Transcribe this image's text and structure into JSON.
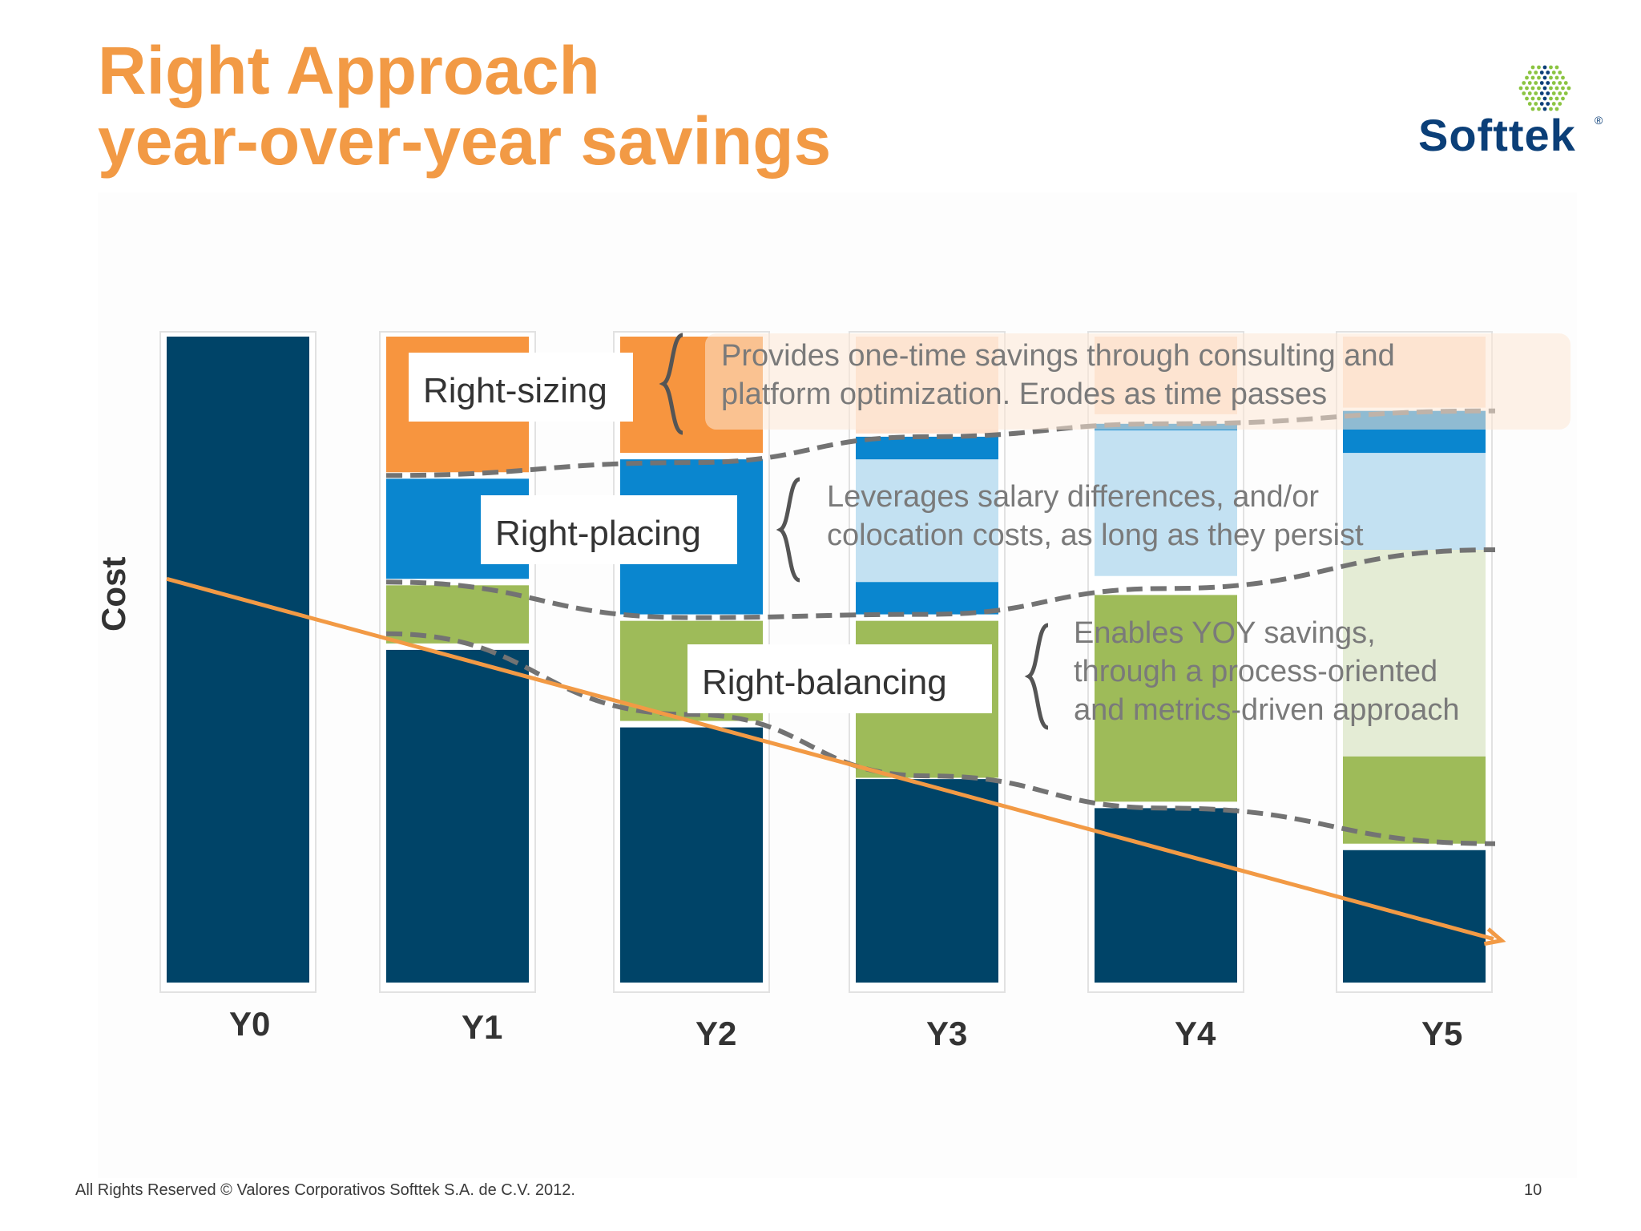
{
  "slide": {
    "title_line1": "Right Approach",
    "title_line2": "year-over-year savings",
    "logo_text": "Softtek",
    "logo_mark": "®",
    "footer": "All Rights Reserved © Valores Corporativos Softtek S.A. de C.V. 2012.",
    "page_number": "10"
  },
  "colors": {
    "title": "#f29a45",
    "base_cost": "#004468",
    "right_sizing": "#f7953f",
    "right_sizing_faded": "#fde0cc",
    "right_placing": "#0a86cf",
    "right_placing_faded": "#c3e1f2",
    "right_balancing": "#9ebb59",
    "right_balancing_faded": "#e4ecd5",
    "trend_arrow": "#f29a45",
    "dashed": "#737373",
    "logo": "#0b3f78",
    "logo_dots_green": "#8bc441"
  },
  "chart_data": {
    "type": "bar",
    "stacked": true,
    "ylabel": "Cost",
    "xlabel": "",
    "grid": false,
    "ylim": [
      0,
      100
    ],
    "categories": [
      "Y0",
      "Y1",
      "Y2",
      "Y3",
      "Y4",
      "Y5"
    ],
    "series": [
      {
        "name": "",
        "key": "base",
        "segments": [
          [
            0,
            100
          ],
          [
            0,
            51.5
          ],
          [
            0,
            39.5
          ],
          [
            0,
            31.5
          ],
          [
            0,
            27
          ],
          [
            0,
            20.5
          ]
        ]
      },
      {
        "name": "",
        "key": "balancing",
        "segments": [
          null,
          [
            52.5,
            61.5
          ],
          [
            40.5,
            56
          ],
          [
            31.7,
            56
          ],
          [
            28,
            60
          ],
          [
            21.5,
            65
          ]
        ]
      },
      {
        "name": "",
        "key": "placing",
        "segments": [
          null,
          [
            62.5,
            78
          ],
          [
            57,
            81
          ],
          [
            57,
            84.5
          ],
          [
            63,
            86.5
          ],
          [
            67,
            88.5
          ]
        ]
      },
      {
        "name": "",
        "key": "sizing",
        "segments": [
          null,
          [
            79,
            100
          ],
          [
            82,
            100
          ],
          [
            85,
            100
          ],
          [
            88,
            100
          ],
          [
            91,
            100
          ]
        ]
      }
    ],
    "y4_y5_faded_bands": {
      "Y3": {
        "placing_faded": [
          62,
          81
        ],
        "sizing_faded": [
          85.5,
          99
        ]
      },
      "Y4": {
        "placing_faded": [
          63,
          85.5
        ],
        "sizing_faded": [
          88,
          100
        ]
      },
      "Y5": {
        "placing_faded": [
          67,
          82
        ],
        "sizing_faded": [
          89,
          100
        ],
        "balancing_faded": [
          35,
          67
        ]
      }
    },
    "callouts": [
      {
        "label": "Right-sizing",
        "text_line1": "Provides one-time savings through consulting and",
        "text_line2": "platform optimization. Erodes as time passes"
      },
      {
        "label": "Right-placing",
        "text_line1": "Leverages salary differences, and/or",
        "text_line2": "colocation costs, as long as they persist"
      },
      {
        "label": "Right-balancing",
        "text_line1": "Enables YOY savings,",
        "text_line2": "through a process-oriented",
        "text_line3": "and metrics-driven approach"
      }
    ],
    "trend_line": {
      "from": [
        "Y0",
        62.5
      ],
      "to": [
        "Y5",
        6.5
      ]
    },
    "dashed_curves": {
      "sizing_boundary": [
        [
          "Y1",
          78.5
        ],
        [
          "Y2",
          80.5
        ],
        [
          "Y3",
          84.5
        ],
        [
          "Y4",
          86.5
        ],
        [
          "Y5",
          88.5
        ]
      ],
      "placing_boundary": [
        [
          "Y1",
          62
        ],
        [
          "Y2",
          56.5
        ],
        [
          "Y3",
          57
        ],
        [
          "Y4",
          61
        ],
        [
          "Y5",
          67
        ]
      ],
      "balancing_boundary": [
        [
          "Y1",
          54
        ],
        [
          "Y2",
          41.5
        ],
        [
          "Y3",
          32
        ],
        [
          "Y4",
          27
        ],
        [
          "Y5",
          21.5
        ]
      ]
    }
  }
}
